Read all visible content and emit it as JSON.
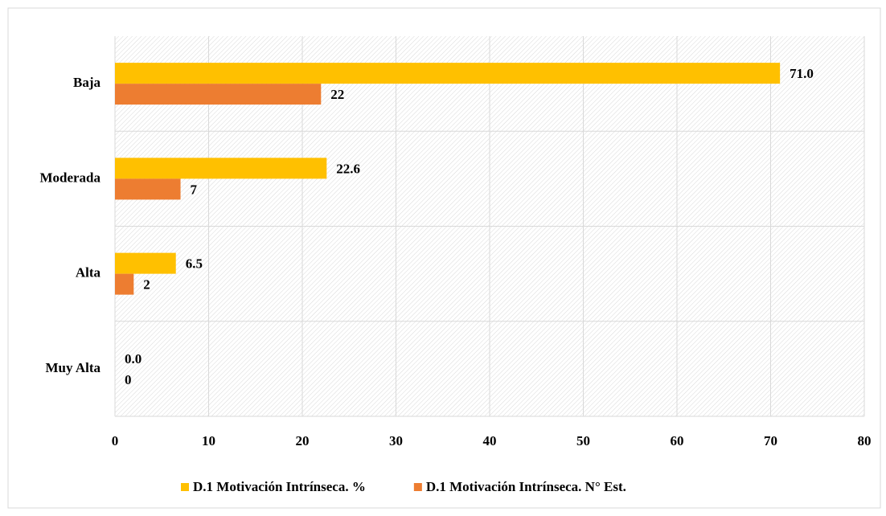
{
  "chart_data": {
    "type": "hbar",
    "categories": [
      "Baja",
      "Moderada",
      "Alta",
      "Muy Alta"
    ],
    "series": [
      {
        "name": "D.1 Motivación Intrínseca. %",
        "color": "#FFC000",
        "values": [
          71,
          22.6,
          6.5,
          0
        ],
        "value_labels": [
          "71.0",
          "22.6",
          "6.5",
          "0.0"
        ]
      },
      {
        "name": "D.1 Motivación Intrínseca. N° Est.",
        "color": "#ED7D31",
        "values": [
          22,
          7,
          2,
          0
        ]
      }
    ],
    "xlim": [
      0,
      80
    ],
    "xticks": [
      0,
      10,
      20,
      30,
      40,
      50,
      60,
      70,
      80
    ],
    "grid": true,
    "legend": "bottom"
  }
}
